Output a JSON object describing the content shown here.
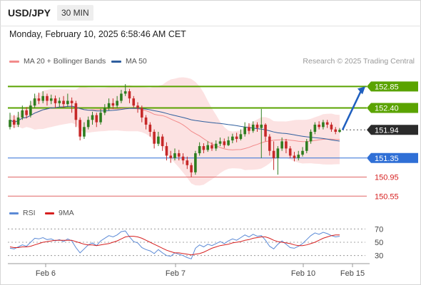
{
  "header": {
    "symbol": "USD/JPY",
    "timeframe": "30 MIN"
  },
  "datetime": "Monday, February 10, 2025 6:58:46 AM CET",
  "legend": {
    "ma20_bb": {
      "label": "MA 20 + Bollinger Bands",
      "color": "#f28b8b"
    },
    "ma50": {
      "label": "MA 50",
      "color": "#2f5f9e"
    }
  },
  "credit": "Research © 2025 Trading Central",
  "rsi_legend": {
    "rsi": {
      "label": "RSI",
      "color": "#5b8ad6"
    },
    "ma9": {
      "label": "9MA",
      "color": "#d61f1f"
    }
  },
  "chart_data": {
    "type": "candlestick",
    "instrument": "USD/JPY",
    "timeframe": "30 MIN",
    "price_range": [
      150.45,
      153.2
    ],
    "current_price": 151.94,
    "x_tick_labels": [
      "Feb 6",
      "Feb 7",
      "Feb 10",
      "Feb 15"
    ],
    "levels": [
      {
        "value": 152.85,
        "label": "152.85",
        "kind": "resistance",
        "color": "#5aa300"
      },
      {
        "value": 152.4,
        "label": "152.40",
        "kind": "resistance",
        "color": "#5aa300"
      },
      {
        "value": 151.94,
        "label": "151.94",
        "kind": "current",
        "color": "#333333"
      },
      {
        "value": 151.35,
        "label": "151.35",
        "kind": "pivot",
        "color": "#2f6fd6"
      },
      {
        "value": 150.95,
        "label": "150.95",
        "kind": "support",
        "color": "#d61f1f"
      },
      {
        "value": 150.55,
        "label": "150.55",
        "kind": "support",
        "color": "#d61f1f"
      }
    ],
    "forecast_arrow": {
      "from": 151.94,
      "to": 152.85,
      "color": "#1f5fbf"
    },
    "candles": [
      [
        152.0,
        152.15,
        152.3,
        151.95
      ],
      [
        152.15,
        152.05,
        152.25,
        151.98
      ],
      [
        152.05,
        152.2,
        152.32,
        152.0
      ],
      [
        152.2,
        152.35,
        152.45,
        152.15
      ],
      [
        152.35,
        152.25,
        152.42,
        152.18
      ],
      [
        152.25,
        152.45,
        152.55,
        152.2
      ],
      [
        152.45,
        152.6,
        152.7,
        152.4
      ],
      [
        152.6,
        152.55,
        152.72,
        152.48
      ],
      [
        152.55,
        152.65,
        152.75,
        152.5
      ],
      [
        152.65,
        152.55,
        152.7,
        152.45
      ],
      [
        152.55,
        152.6,
        152.68,
        152.48
      ],
      [
        152.6,
        152.5,
        152.66,
        152.4
      ],
      [
        152.5,
        152.55,
        152.62,
        152.42
      ],
      [
        152.55,
        152.48,
        152.65,
        152.4
      ],
      [
        152.48,
        152.55,
        152.7,
        152.42
      ],
      [
        152.55,
        152.5,
        152.62,
        152.3
      ],
      [
        152.5,
        152.15,
        152.55,
        152.0
      ],
      [
        152.15,
        151.8,
        152.2,
        151.72
      ],
      [
        151.8,
        152.0,
        152.1,
        151.75
      ],
      [
        152.0,
        152.15,
        152.22,
        151.95
      ],
      [
        152.15,
        152.25,
        152.32,
        152.05
      ],
      [
        152.25,
        152.1,
        152.3,
        152.0
      ],
      [
        152.1,
        152.3,
        152.38,
        152.05
      ],
      [
        152.3,
        152.4,
        152.48,
        152.25
      ],
      [
        152.4,
        152.5,
        152.6,
        152.35
      ],
      [
        152.5,
        152.45,
        152.6,
        152.38
      ],
      [
        152.45,
        152.55,
        152.65,
        152.4
      ],
      [
        152.55,
        152.7,
        152.78,
        152.5
      ],
      [
        152.7,
        152.75,
        152.9,
        152.65
      ],
      [
        152.75,
        152.6,
        152.8,
        152.5
      ],
      [
        152.6,
        152.45,
        152.65,
        152.4
      ],
      [
        152.45,
        152.4,
        152.52,
        152.3
      ],
      [
        152.4,
        152.2,
        152.45,
        152.1
      ],
      [
        152.2,
        152.05,
        152.25,
        151.95
      ],
      [
        152.05,
        151.9,
        152.1,
        151.8
      ],
      [
        151.9,
        151.65,
        151.95,
        151.55
      ],
      [
        151.65,
        151.8,
        151.9,
        151.6
      ],
      [
        151.8,
        151.6,
        151.85,
        151.5
      ],
      [
        151.6,
        151.4,
        151.68,
        151.3
      ],
      [
        151.4,
        151.35,
        151.5,
        151.25
      ],
      [
        151.35,
        151.45,
        151.55,
        151.3
      ],
      [
        151.45,
        151.38,
        151.52,
        151.3
      ],
      [
        151.38,
        151.3,
        151.45,
        151.22
      ],
      [
        151.3,
        151.2,
        151.38,
        151.12
      ],
      [
        151.2,
        151.05,
        151.25,
        150.95
      ],
      [
        151.05,
        151.45,
        151.5,
        151.0
      ],
      [
        151.45,
        151.6,
        151.68,
        151.4
      ],
      [
        151.6,
        151.52,
        151.66,
        151.45
      ],
      [
        151.52,
        151.62,
        151.7,
        151.48
      ],
      [
        151.62,
        151.55,
        151.68,
        151.5
      ],
      [
        151.55,
        151.65,
        151.72,
        151.5
      ],
      [
        151.65,
        151.7,
        151.78,
        151.6
      ],
      [
        151.7,
        151.62,
        151.76,
        151.56
      ],
      [
        151.62,
        151.72,
        151.8,
        151.6
      ],
      [
        151.72,
        151.8,
        151.86,
        151.66
      ],
      [
        151.8,
        151.75,
        151.88,
        151.68
      ],
      [
        151.75,
        151.85,
        151.95,
        151.72
      ],
      [
        151.85,
        152.0,
        152.1,
        151.8
      ],
      [
        152.0,
        151.92,
        152.08,
        151.85
      ],
      [
        151.92,
        152.05,
        152.12,
        151.88
      ],
      [
        152.05,
        151.98,
        152.1,
        151.9
      ],
      [
        151.98,
        152.05,
        152.38,
        151.35
      ],
      [
        152.05,
        151.8,
        152.08,
        151.7
      ],
      [
        151.8,
        151.5,
        151.85,
        151.4
      ],
      [
        151.5,
        151.35,
        151.7,
        151.1
      ],
      [
        151.35,
        151.55,
        151.6,
        151.0
      ],
      [
        151.55,
        151.7,
        151.78,
        151.5
      ],
      [
        151.7,
        151.55,
        151.75,
        151.45
      ],
      [
        151.55,
        151.4,
        151.6,
        151.35
      ],
      [
        151.4,
        151.35,
        151.48,
        151.28
      ],
      [
        151.35,
        151.42,
        151.5,
        151.3
      ],
      [
        151.42,
        151.5,
        151.58,
        151.38
      ],
      [
        151.5,
        151.7,
        151.75,
        151.45
      ],
      [
        151.7,
        151.9,
        151.95,
        151.65
      ],
      [
        151.9,
        152.05,
        152.1,
        151.85
      ],
      [
        152.05,
        152.0,
        152.12,
        151.95
      ],
      [
        152.0,
        152.1,
        152.15,
        151.95
      ],
      [
        152.1,
        152.05,
        152.15,
        151.98
      ],
      [
        152.05,
        151.95,
        152.1,
        151.9
      ],
      [
        151.95,
        151.9,
        152.0,
        151.85
      ],
      [
        151.9,
        151.94,
        151.98,
        151.88
      ]
    ],
    "rsi_ticks": [
      30,
      50,
      70
    ],
    "rsi_range": [
      20,
      80
    ],
    "rsi": [
      41,
      40,
      43,
      46,
      44,
      50,
      56,
      55,
      57,
      54,
      55,
      52,
      54,
      51,
      55,
      52,
      42,
      34,
      40,
      46,
      49,
      45,
      52,
      56,
      60,
      58,
      61,
      66,
      67,
      58,
      51,
      49,
      42,
      39,
      37,
      33,
      39,
      34,
      30,
      29,
      34,
      32,
      30,
      27,
      25,
      41,
      46,
      43,
      47,
      45,
      48,
      51,
      48,
      52,
      55,
      53,
      57,
      61,
      58,
      62,
      59,
      60,
      53,
      44,
      40,
      47,
      52,
      47,
      42,
      41,
      44,
      48,
      54,
      60,
      64,
      62,
      65,
      63,
      60,
      58,
      59
    ],
    "rsi_ma": [
      43,
      42,
      42,
      43,
      43,
      44,
      46,
      48,
      50,
      51,
      52,
      53,
      53,
      53,
      53,
      53,
      51,
      49,
      47,
      46,
      46,
      45,
      46,
      47,
      48,
      50,
      52,
      55,
      58,
      59,
      59,
      58,
      56,
      53,
      50,
      47,
      44,
      41,
      38,
      36,
      34,
      34,
      33,
      32,
      31,
      32,
      33,
      35,
      38,
      41,
      43,
      45,
      46,
      47,
      49,
      50,
      51,
      53,
      54,
      56,
      57,
      58,
      58,
      56,
      53,
      51,
      50,
      49,
      48,
      46,
      45,
      45,
      46,
      48,
      50,
      53,
      56,
      58,
      60,
      61,
      61
    ],
    "ma20": [],
    "ma50": []
  }
}
